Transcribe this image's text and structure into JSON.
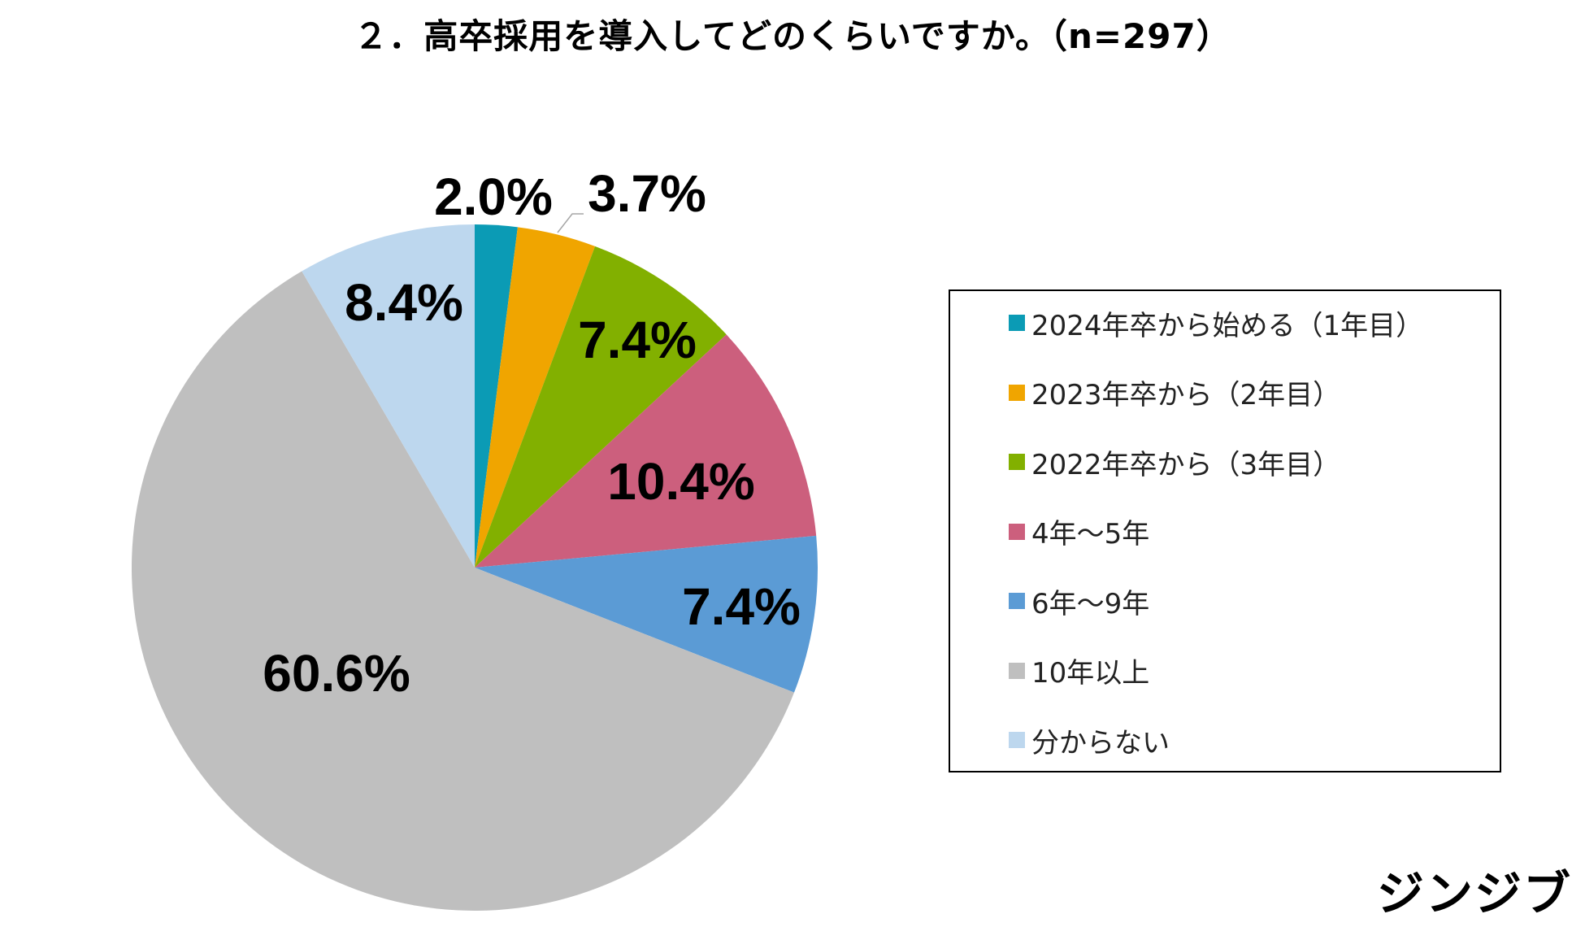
{
  "title": "２．高卒採用を導入してどのくらいですか。（n=297）",
  "brand": "ジンジブ",
  "chart_data": {
    "type": "pie",
    "title": "２．高卒採用を導入してどのくらいですか。（n=297）",
    "start_angle_deg": 0,
    "direction": "clockwise",
    "legend_position": "right",
    "slices": [
      {
        "label": "2024年卒から始める（1年目）",
        "value": 2.0,
        "display": "2.0%",
        "color": "#0b9bb5"
      },
      {
        "label": "2023年卒から（2年目）",
        "value": 3.7,
        "display": "3.7%",
        "color": "#f0a500"
      },
      {
        "label": "2022年卒から（3年目）",
        "value": 7.4,
        "display": "7.4%",
        "color": "#82b000"
      },
      {
        "label": "4年～5年",
        "value": 10.4,
        "display": "10.4%",
        "color": "#cc5f7d"
      },
      {
        "label": "6年～9年",
        "value": 7.4,
        "display": "7.4%",
        "color": "#5b9bd5"
      },
      {
        "label": "10年以上",
        "value": 60.6,
        "display": "60.6%",
        "color": "#bfbfbf"
      },
      {
        "label": "分からない",
        "value": 8.4,
        "display": "8.4%",
        "color": "#bdd7ee"
      }
    ]
  }
}
